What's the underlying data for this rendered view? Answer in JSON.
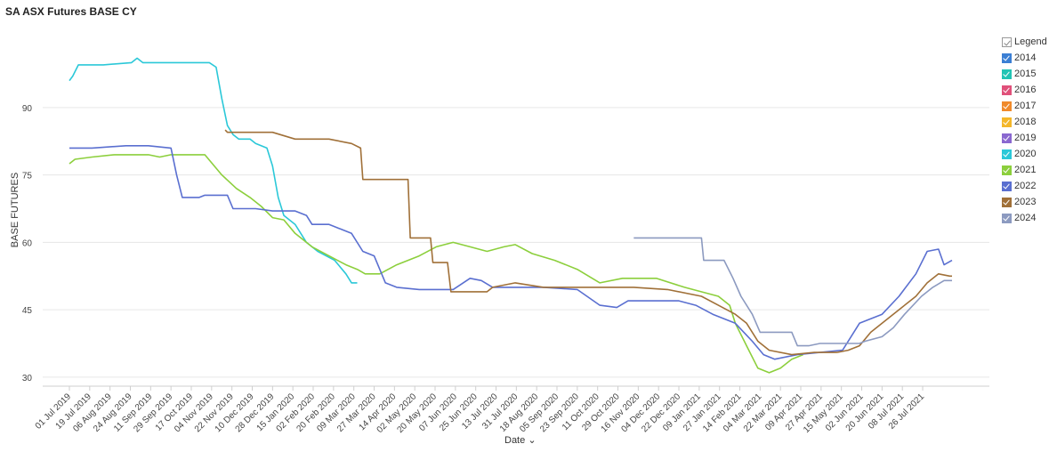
{
  "title": "SA ASX Futures BASE CY",
  "legend_header": "Legend",
  "chart_data": {
    "type": "line",
    "title": "SA ASX Futures BASE CY",
    "xlabel": "Date",
    "ylabel": "BASE FUTURES",
    "ylim": [
      28,
      108
    ],
    "xlim": [
      0,
      782
    ],
    "yticks": [
      30,
      45,
      60,
      75,
      90
    ],
    "xtick_labels": [
      "01 Jul 2019",
      "19 Jul 2019",
      "06 Aug 2019",
      "24 Aug 2019",
      "11 Sep 2019",
      "29 Sep 2019",
      "17 Oct 2019",
      "04 Nov 2019",
      "22 Nov 2019",
      "10 Dec 2019",
      "28 Dec 2019",
      "15 Jan 2020",
      "02 Feb 2020",
      "20 Feb 2020",
      "09 Mar 2020",
      "27 Mar 2020",
      "14 Apr 2020",
      "02 May 2020",
      "20 May 2020",
      "07 Jun 2020",
      "25 Jun 2020",
      "13 Jul 2020",
      "31 Jul 2020",
      "18 Aug 2020",
      "05 Sep 2020",
      "23 Sep 2020",
      "11 Oct 2020",
      "29 Oct 2020",
      "16 Nov 2020",
      "04 Dec 2020",
      "22 Dec 2020",
      "09 Jan 2021",
      "27 Jan 2021",
      "14 Feb 2021",
      "04 Mar 2021",
      "22 Mar 2021",
      "09 Apr 2021",
      "27 Apr 2021",
      "15 May 2021",
      "02 Jun 2021",
      "20 Jun 2021",
      "08 Jul 2021",
      "26 Jul 2021"
    ],
    "xtick_days": [
      0,
      18,
      36,
      54,
      72,
      90,
      108,
      126,
      144,
      162,
      180,
      198,
      216,
      234,
      252,
      270,
      288,
      306,
      324,
      342,
      360,
      378,
      396,
      414,
      432,
      450,
      468,
      486,
      504,
      522,
      540,
      558,
      576,
      594,
      612,
      630,
      648,
      666,
      684,
      702,
      720,
      738,
      756
    ],
    "legend_placement": "right",
    "series": [
      {
        "name": "2014",
        "color": "#3b7fd4",
        "points": []
      },
      {
        "name": "2015",
        "color": "#22c4b4",
        "points": []
      },
      {
        "name": "2016",
        "color": "#e0507a",
        "points": []
      },
      {
        "name": "2017",
        "color": "#f08a2c",
        "points": []
      },
      {
        "name": "2018",
        "color": "#f4b72a",
        "points": []
      },
      {
        "name": "2019",
        "color": "#8a68d0",
        "points": []
      },
      {
        "name": "2020",
        "color": "#2bc8d8",
        "points": [
          [
            0,
            96
          ],
          [
            3,
            97
          ],
          [
            8,
            99.5
          ],
          [
            30,
            99.5
          ],
          [
            55,
            100
          ],
          [
            60,
            101
          ],
          [
            65,
            100
          ],
          [
            100,
            100
          ],
          [
            124,
            100
          ],
          [
            130,
            99
          ],
          [
            135,
            92
          ],
          [
            140,
            86
          ],
          [
            145,
            84
          ],
          [
            150,
            83
          ],
          [
            160,
            83
          ],
          [
            165,
            82
          ],
          [
            175,
            81
          ],
          [
            180,
            77
          ],
          [
            185,
            70
          ],
          [
            190,
            66
          ],
          [
            200,
            64
          ],
          [
            210,
            60
          ],
          [
            220,
            58
          ],
          [
            235,
            56
          ],
          [
            245,
            53
          ],
          [
            250,
            51
          ],
          [
            255,
            51
          ]
        ]
      },
      {
        "name": "2021",
        "color": "#8ccf3c",
        "points": [
          [
            0,
            77.5
          ],
          [
            5,
            78.5
          ],
          [
            20,
            79
          ],
          [
            40,
            79.5
          ],
          [
            70,
            79.5
          ],
          [
            80,
            79
          ],
          [
            90,
            79.5
          ],
          [
            120,
            79.5
          ],
          [
            125,
            78
          ],
          [
            135,
            75
          ],
          [
            148,
            72
          ],
          [
            160,
            70
          ],
          [
            170,
            68
          ],
          [
            180,
            65.5
          ],
          [
            190,
            65
          ],
          [
            200,
            62
          ],
          [
            215,
            59
          ],
          [
            230,
            57
          ],
          [
            245,
            55
          ],
          [
            255,
            54
          ],
          [
            262,
            53
          ],
          [
            275,
            53
          ],
          [
            290,
            55
          ],
          [
            310,
            57
          ],
          [
            325,
            59
          ],
          [
            340,
            60
          ],
          [
            355,
            59
          ],
          [
            370,
            58
          ],
          [
            385,
            59
          ],
          [
            395,
            59.5
          ],
          [
            410,
            57.5
          ],
          [
            430,
            56
          ],
          [
            450,
            54
          ],
          [
            470,
            51
          ],
          [
            490,
            52
          ],
          [
            520,
            52
          ],
          [
            545,
            50
          ],
          [
            575,
            48
          ],
          [
            585,
            46
          ],
          [
            590,
            42
          ],
          [
            600,
            37
          ],
          [
            610,
            32
          ],
          [
            620,
            31
          ],
          [
            630,
            32
          ],
          [
            640,
            34
          ],
          [
            650,
            35
          ]
        ]
      },
      {
        "name": "2022",
        "color": "#5a6fd0",
        "points": [
          [
            0,
            81
          ],
          [
            20,
            81
          ],
          [
            50,
            81.5
          ],
          [
            70,
            81.5
          ],
          [
            90,
            81
          ],
          [
            95,
            75
          ],
          [
            100,
            70
          ],
          [
            115,
            70
          ],
          [
            120,
            70.5
          ],
          [
            140,
            70.5
          ],
          [
            145,
            67.5
          ],
          [
            165,
            67.5
          ],
          [
            180,
            67
          ],
          [
            200,
            67
          ],
          [
            210,
            66
          ],
          [
            215,
            64
          ],
          [
            230,
            64
          ],
          [
            240,
            63
          ],
          [
            250,
            62
          ],
          [
            260,
            58
          ],
          [
            270,
            57
          ],
          [
            280,
            51
          ],
          [
            290,
            50
          ],
          [
            310,
            49.5
          ],
          [
            330,
            49.5
          ],
          [
            340,
            49.5
          ],
          [
            355,
            52
          ],
          [
            365,
            51.5
          ],
          [
            375,
            50
          ],
          [
            390,
            50
          ],
          [
            420,
            50
          ],
          [
            450,
            49.5
          ],
          [
            470,
            46
          ],
          [
            485,
            45.5
          ],
          [
            495,
            47
          ],
          [
            510,
            47
          ],
          [
            540,
            47
          ],
          [
            555,
            46
          ],
          [
            570,
            44
          ],
          [
            590,
            42
          ],
          [
            605,
            38
          ],
          [
            615,
            35
          ],
          [
            625,
            34
          ],
          [
            645,
            35
          ],
          [
            665,
            35.5
          ],
          [
            685,
            36
          ],
          [
            700,
            42
          ],
          [
            720,
            44
          ],
          [
            735,
            48
          ],
          [
            750,
            53
          ],
          [
            760,
            58
          ],
          [
            770,
            58.5
          ],
          [
            775,
            55
          ],
          [
            782,
            56
          ]
        ]
      },
      {
        "name": "2023",
        "color": "#a07038",
        "points": [
          [
            138,
            85
          ],
          [
            140,
            84.5
          ],
          [
            180,
            84.5
          ],
          [
            200,
            83
          ],
          [
            230,
            83
          ],
          [
            250,
            82
          ],
          [
            258,
            81
          ],
          [
            260,
            74
          ],
          [
            300,
            74
          ],
          [
            302,
            61
          ],
          [
            320,
            61
          ],
          [
            322,
            55.5
          ],
          [
            335,
            55.5
          ],
          [
            338,
            49
          ],
          [
            345,
            49
          ],
          [
            370,
            49
          ],
          [
            375,
            50
          ],
          [
            395,
            51
          ],
          [
            420,
            50
          ],
          [
            470,
            50
          ],
          [
            500,
            50
          ],
          [
            530,
            49.5
          ],
          [
            560,
            48
          ],
          [
            575,
            46
          ],
          [
            590,
            44
          ],
          [
            600,
            42
          ],
          [
            610,
            38
          ],
          [
            620,
            36
          ],
          [
            640,
            35
          ],
          [
            660,
            35.5
          ],
          [
            680,
            35.5
          ],
          [
            690,
            36
          ],
          [
            700,
            37
          ],
          [
            710,
            40
          ],
          [
            720,
            42
          ],
          [
            735,
            45
          ],
          [
            750,
            48
          ],
          [
            760,
            51
          ],
          [
            770,
            53
          ],
          [
            780,
            52.5
          ],
          [
            782,
            52.5
          ]
        ]
      },
      {
        "name": "2024",
        "color": "#8c9ac0",
        "points": [
          [
            500,
            61
          ],
          [
            520,
            61
          ],
          [
            545,
            61
          ],
          [
            560,
            61
          ],
          [
            562,
            56
          ],
          [
            580,
            56
          ],
          [
            588,
            52
          ],
          [
            595,
            48
          ],
          [
            605,
            44
          ],
          [
            612,
            40
          ],
          [
            625,
            40
          ],
          [
            640,
            40
          ],
          [
            645,
            37
          ],
          [
            655,
            37
          ],
          [
            665,
            37.5
          ],
          [
            700,
            37.5
          ],
          [
            705,
            38
          ],
          [
            720,
            39
          ],
          [
            730,
            41
          ],
          [
            740,
            44
          ],
          [
            755,
            48
          ],
          [
            765,
            50
          ],
          [
            775,
            51.5
          ],
          [
            782,
            51.5
          ]
        ]
      }
    ],
    "grid": "horizontal"
  }
}
